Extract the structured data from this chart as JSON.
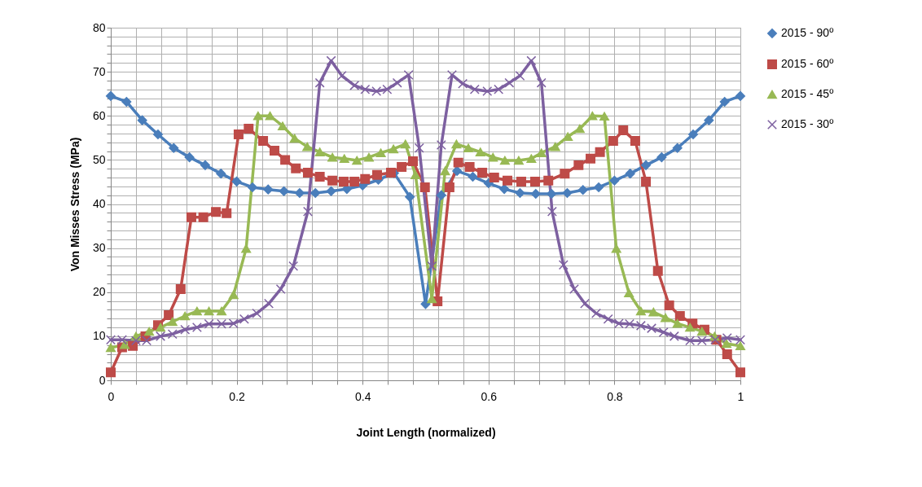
{
  "chart_data": {
    "type": "line",
    "xlabel": "Joint Length (normalized)",
    "ylabel": "Von Misses Stress (MPa)",
    "xlim": [
      0,
      1
    ],
    "ylim": [
      0,
      80
    ],
    "xticks": [
      0,
      {
        "value": 0.04,
        "label": null
      },
      {
        "value": 0.08,
        "label": null
      },
      {
        "value": 0.12,
        "label": null
      },
      {
        "value": 0.16,
        "label": null
      },
      0.2,
      {
        "value": 0.24,
        "label": null
      },
      {
        "value": 0.28,
        "label": null
      },
      {
        "value": 0.32,
        "label": null
      },
      {
        "value": 0.36,
        "label": null
      },
      0.4,
      {
        "value": 0.44,
        "label": null
      },
      {
        "value": 0.48,
        "label": null
      },
      {
        "value": 0.52,
        "label": null
      },
      {
        "value": 0.56,
        "label": null
      },
      0.6,
      {
        "value": 0.64,
        "label": null
      },
      {
        "value": 0.68,
        "label": null
      },
      {
        "value": 0.72,
        "label": null
      },
      {
        "value": 0.76,
        "label": null
      },
      0.8,
      {
        "value": 0.84,
        "label": null
      },
      {
        "value": 0.88,
        "label": null
      },
      {
        "value": 0.92,
        "label": null
      },
      {
        "value": 0.96,
        "label": null
      },
      1
    ],
    "yticks": [
      0,
      {
        "value": 2,
        "label": null
      },
      {
        "value": 4,
        "label": null
      },
      {
        "value": 6,
        "label": null
      },
      {
        "value": 8,
        "label": null
      },
      10,
      {
        "value": 12,
        "label": null
      },
      {
        "value": 14,
        "label": null
      },
      {
        "value": 16,
        "label": null
      },
      {
        "value": 18,
        "label": null
      },
      20,
      {
        "value": 22,
        "label": null
      },
      {
        "value": 24,
        "label": null
      },
      {
        "value": 26,
        "label": null
      },
      {
        "value": 28,
        "label": null
      },
      30,
      {
        "value": 32,
        "label": null
      },
      {
        "value": 34,
        "label": null
      },
      {
        "value": 36,
        "label": null
      },
      {
        "value": 38,
        "label": null
      },
      40,
      {
        "value": 42,
        "label": null
      },
      {
        "value": 44,
        "label": null
      },
      {
        "value": 46,
        "label": null
      },
      {
        "value": 48,
        "label": null
      },
      50,
      {
        "value": 52,
        "label": null
      },
      {
        "value": 54,
        "label": null
      },
      {
        "value": 56,
        "label": null
      },
      {
        "value": 58,
        "label": null
      },
      60,
      {
        "value": 62,
        "label": null
      },
      {
        "value": 64,
        "label": null
      },
      {
        "value": 66,
        "label": null
      },
      {
        "value": 68,
        "label": null
      },
      70,
      {
        "value": 72,
        "label": null
      },
      {
        "value": 74,
        "label": null
      },
      {
        "value": 76,
        "label": null
      },
      {
        "value": 78,
        "label": null
      },
      80
    ],
    "grid": true,
    "legend": "right",
    "series": [
      {
        "name": "2015 - 90º",
        "color": "#4a7ebb",
        "marker": "diamond",
        "x": [
          0,
          0.025,
          0.05,
          0.075,
          0.1,
          0.125,
          0.15,
          0.175,
          0.2,
          0.225,
          0.25,
          0.275,
          0.3,
          0.325,
          0.35,
          0.375,
          0.4,
          0.425,
          0.45,
          0.475,
          0.5,
          0.525,
          0.55,
          0.575,
          0.6,
          0.625,
          0.65,
          0.675,
          0.7,
          0.725,
          0.75,
          0.775,
          0.8,
          0.825,
          0.85,
          0.875,
          0.9,
          0.925,
          0.95,
          0.975,
          1
        ],
        "values": [
          64.5,
          63.2,
          59,
          55.8,
          52.7,
          50.6,
          48.8,
          46.9,
          45.1,
          43.8,
          43.3,
          42.9,
          42.5,
          42.5,
          42.9,
          43.4,
          44.2,
          45.5,
          47,
          41.6,
          17.3,
          42,
          47.5,
          46.2,
          44.7,
          43.4,
          42.5,
          42.3,
          42.3,
          42.5,
          43.2,
          43.8,
          45.3,
          46.9,
          48.8,
          50.6,
          52.7,
          55.8,
          59,
          63.2,
          64.5
        ]
      },
      {
        "name": "2015 - 60º",
        "color": "#be4b48",
        "marker": "square",
        "x": [
          0,
          0.018,
          0.035,
          0.055,
          0.075,
          0.092,
          0.111,
          0.128,
          0.147,
          0.167,
          0.184,
          0.203,
          0.219,
          0.242,
          0.26,
          0.277,
          0.294,
          0.313,
          0.332,
          0.352,
          0.37,
          0.387,
          0.404,
          0.423,
          0.445,
          0.462,
          0.48,
          0.499,
          0.519,
          0.538,
          0.552,
          0.57,
          0.59,
          0.609,
          0.63,
          0.652,
          0.674,
          0.695,
          0.721,
          0.743,
          0.762,
          0.777,
          0.798,
          0.814,
          0.833,
          0.85,
          0.869,
          0.887,
          0.904,
          0.924,
          0.943,
          0.962,
          0.979,
          1
        ],
        "values": [
          1.8,
          7.5,
          7.8,
          10,
          12.5,
          14.8,
          20.7,
          37,
          37,
          38.2,
          37.9,
          55.8,
          57.1,
          54.3,
          52.1,
          50,
          48.1,
          47.1,
          46.2,
          45.3,
          45.1,
          45.1,
          45.7,
          46.6,
          47.1,
          48.4,
          49.7,
          43.8,
          17.9,
          43.8,
          49.4,
          48.4,
          47.1,
          46,
          45.3,
          45.1,
          45.1,
          45.3,
          46.9,
          48.8,
          50.3,
          51.8,
          54.3,
          56.7,
          54.3,
          45.1,
          24.8,
          17,
          14.6,
          12.9,
          11.5,
          9.2,
          5.9,
          1.8
        ]
      },
      {
        "name": "2015 - 45º",
        "color": "#98b954",
        "marker": "triangle",
        "x": [
          0,
          0.022,
          0.04,
          0.061,
          0.079,
          0.098,
          0.118,
          0.137,
          0.156,
          0.176,
          0.195,
          0.215,
          0.234,
          0.253,
          0.273,
          0.292,
          0.312,
          0.332,
          0.352,
          0.371,
          0.391,
          0.41,
          0.429,
          0.449,
          0.468,
          0.484,
          0.51,
          0.531,
          0.549,
          0.568,
          0.587,
          0.607,
          0.626,
          0.648,
          0.668,
          0.684,
          0.706,
          0.726,
          0.745,
          0.765,
          0.784,
          0.803,
          0.823,
          0.842,
          0.862,
          0.881,
          0.9,
          0.92,
          0.939,
          0.959,
          0.978,
          1
        ],
        "values": [
          7.4,
          8.1,
          10,
          11.1,
          12,
          13.3,
          14.6,
          15.7,
          15.7,
          15.7,
          19.4,
          29.9,
          60,
          60,
          57.7,
          54.9,
          53,
          51.8,
          50.6,
          50.3,
          49.9,
          50.6,
          51.6,
          52.5,
          53.6,
          46.6,
          18.5,
          47.5,
          53.6,
          52.7,
          51.8,
          50.6,
          49.9,
          49.9,
          50.3,
          51.6,
          53,
          55.3,
          57.1,
          60,
          59.9,
          29.9,
          19.8,
          15.7,
          15.5,
          14.2,
          12.9,
          12,
          11.1,
          10,
          8.3,
          7.8
        ]
      },
      {
        "name": "2015 - 30º",
        "color": "#7d60a0",
        "marker": "cross",
        "x": [
          0,
          0.018,
          0.04,
          0.057,
          0.079,
          0.098,
          0.118,
          0.137,
          0.156,
          0.176,
          0.195,
          0.212,
          0.232,
          0.251,
          0.27,
          0.29,
          0.313,
          0.332,
          0.35,
          0.367,
          0.387,
          0.404,
          0.422,
          0.439,
          0.455,
          0.473,
          0.49,
          0.51,
          0.525,
          0.542,
          0.559,
          0.578,
          0.598,
          0.616,
          0.633,
          0.65,
          0.668,
          0.684,
          0.701,
          0.719,
          0.736,
          0.753,
          0.771,
          0.79,
          0.807,
          0.824,
          0.842,
          0.859,
          0.878,
          0.895,
          0.92,
          0.939,
          0.96,
          0.979,
          1
        ],
        "values": [
          9.2,
          9.2,
          9,
          9,
          10,
          10.5,
          11.5,
          12,
          12.8,
          12.8,
          12.9,
          13.9,
          15.2,
          17.4,
          20.7,
          25.9,
          38.3,
          67.5,
          72.5,
          69.1,
          66.9,
          66,
          65.6,
          66,
          67.5,
          69.3,
          52.7,
          25.9,
          53.4,
          69.3,
          67.3,
          66,
          65.6,
          66,
          67.5,
          69.1,
          72.5,
          67.5,
          38.3,
          26.2,
          20.7,
          17.4,
          15.2,
          13.9,
          12.9,
          12.8,
          12.4,
          11.8,
          10.9,
          10,
          9,
          9,
          9.2,
          9.6,
          9.2
        ]
      }
    ]
  }
}
